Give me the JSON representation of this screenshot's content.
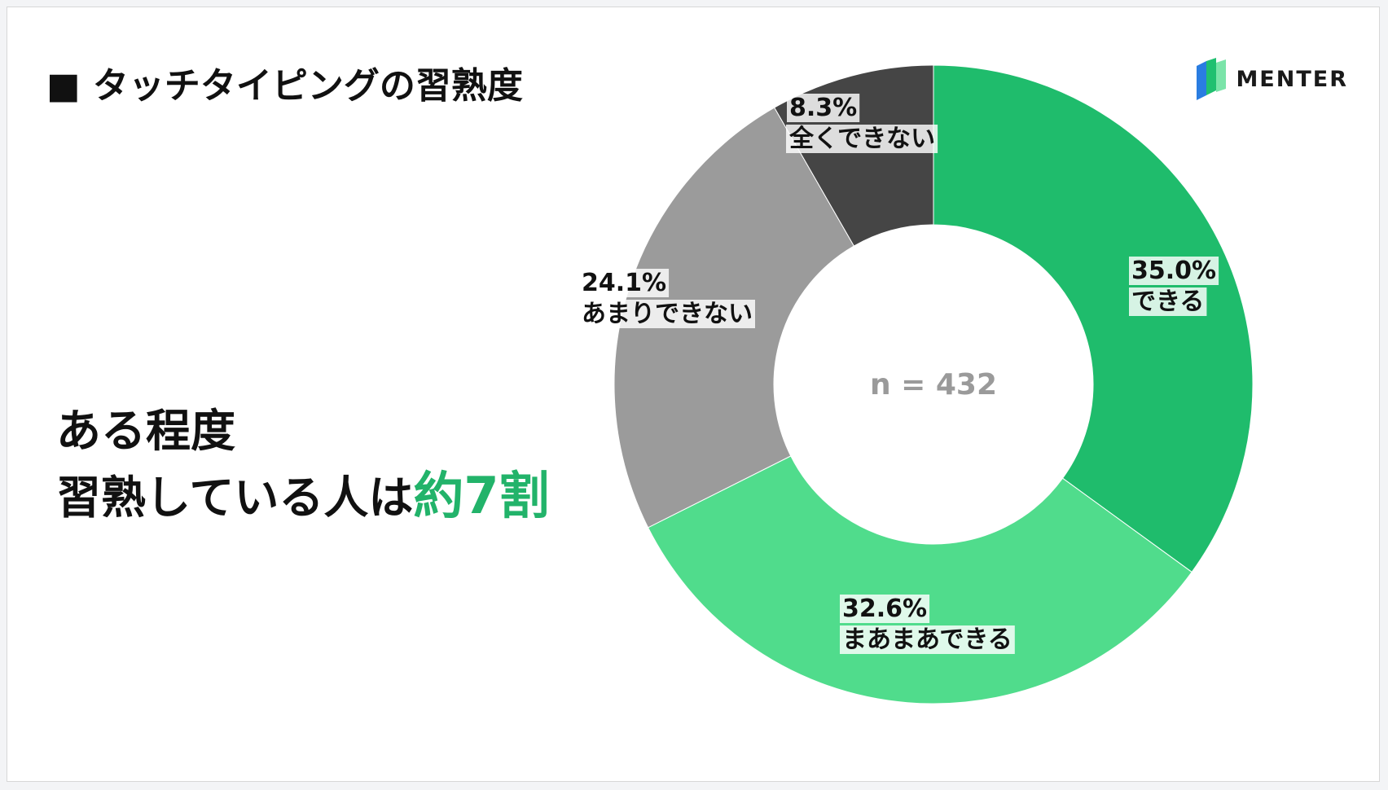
{
  "header": {
    "title": "■ タッチタイピングの習熟度"
  },
  "logo": {
    "text": "MENTER"
  },
  "headline": {
    "line1": "ある程度",
    "line2_prefix": "習熟している人は",
    "line2_highlight": "約7割",
    "highlight_color": "#22b36a"
  },
  "chart_data": {
    "type": "pie",
    "center_label": "n = 432",
    "slices": [
      {
        "label": "できる",
        "value": 35.0,
        "value_label": "35.0%",
        "color": "#1fbc6c"
      },
      {
        "label": "まあまあできる",
        "value": 32.6,
        "value_label": "32.6%",
        "color": "#50dc8c"
      },
      {
        "label": "あまりできない",
        "value": 24.1,
        "value_label": "24.1%",
        "color": "#9b9b9b"
      },
      {
        "label": "全くできない",
        "value": 8.3,
        "value_label": "8.3%",
        "color": "#454545"
      }
    ]
  }
}
